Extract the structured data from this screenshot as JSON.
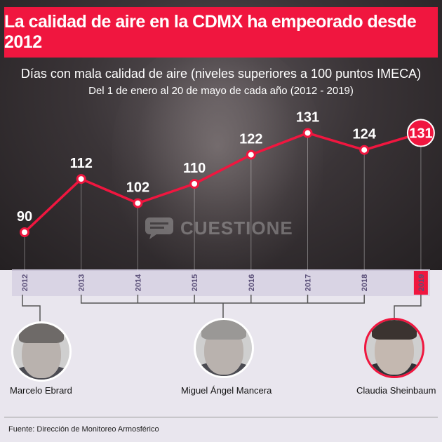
{
  "title": "La calidad de aire en la CDMX ha empeorado desde 2012",
  "subtitle": "Días con mala calidad de aire (niveles superiores a 100 puntos IMECA)",
  "subtitle2": "Del 1 de enero al 20 de mayo de cada año (2012 - 2019)",
  "watermark": "CUESTIONE",
  "colors": {
    "accent": "#f0163f",
    "tick": "#5a4f78",
    "band": "#d9d4e4"
  },
  "chart_data": {
    "type": "line",
    "categories": [
      "2012",
      "2013",
      "2014",
      "2015",
      "2016",
      "2017",
      "2018",
      "2019"
    ],
    "values": [
      90,
      112,
      102,
      110,
      122,
      131,
      124,
      131
    ],
    "highlight": "2019",
    "grid": false,
    "legend": "none"
  },
  "people": [
    {
      "name": "Marcelo Ebrard",
      "years": [
        "2012"
      ]
    },
    {
      "name": "Miguel Ángel Mancera",
      "years": [
        "2013",
        "2014",
        "2015",
        "2016",
        "2017",
        "2018"
      ]
    },
    {
      "name": "Claudia Sheinbaum",
      "years": [
        "2019"
      ],
      "highlight": true
    }
  ],
  "source": "Fuente: Dirección de Monitoreo Armosférico"
}
